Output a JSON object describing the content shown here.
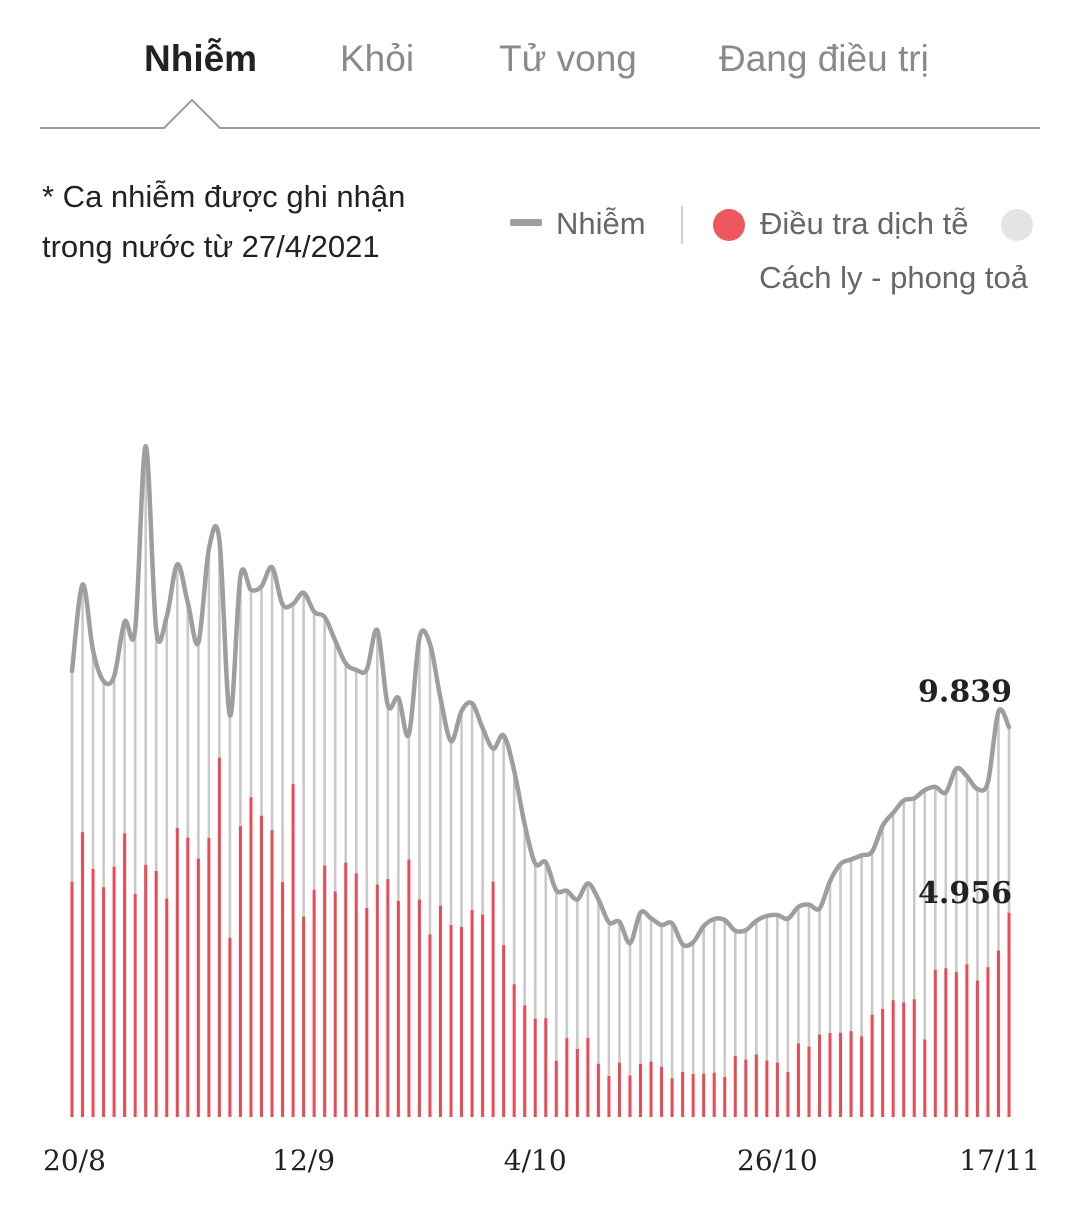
{
  "tabs": [
    {
      "label": "Nhiễm",
      "active": true
    },
    {
      "label": "Khỏi",
      "active": false
    },
    {
      "label": "Tử vong",
      "active": false
    },
    {
      "label": "Đang điều trị",
      "active": false
    }
  ],
  "note": {
    "line1": "* Ca nhiễm được ghi nhận",
    "line2": "trong nước từ 27/4/2021"
  },
  "legend": {
    "infected": "Nhiễm",
    "investigation": "Điều tra dịch tễ",
    "quarantine": "Cách ly - phong toả"
  },
  "colors": {
    "line": "#9e9e9e",
    "total_bar": "#c9c9c9",
    "investigation_bar": "#ea4b55",
    "quarantine_dot": "#e4e4e4"
  },
  "chart_data": {
    "type": "bar",
    "x_start": "20/8",
    "x_end": "17/11",
    "xticks": [
      "20/8",
      "12/9",
      "4/10",
      "26/10",
      "17/11"
    ],
    "series": [
      {
        "name": "Nhiễm",
        "type": "line",
        "values": [
          10824,
          12920,
          11320,
          10577,
          10696,
          12018,
          11826,
          16280,
          11815,
          12146,
          13410,
          12479,
          11509,
          13780,
          14000,
          9743,
          13120,
          12790,
          12876,
          13340,
          12440,
          12450,
          12720,
          12260,
          12130,
          11560,
          11006,
          10850,
          10859,
          11810,
          9988,
          10170,
          9283,
          11630,
          11480,
          10166,
          9120,
          9850,
          10038,
          9440,
          8940,
          9260,
          8400,
          7100,
          6150,
          6180,
          5500,
          5489,
          5280,
          5668,
          5280,
          4723,
          4735,
          4220,
          4960,
          4820,
          4660,
          4700,
          4190,
          4240,
          4630,
          4805,
          4780,
          4520,
          4535,
          4760,
          4880,
          4900,
          4812,
          5098,
          5153,
          5060,
          5720,
          6139,
          6250,
          6349,
          6440,
          7070,
          7380,
          7680,
          7735,
          7935,
          8010,
          7877,
          8455,
          8270,
          7960,
          8130,
          9839,
          9460
        ]
      },
      {
        "name": "Điều tra dịch tễ",
        "type": "bar",
        "values": [
          5710,
          6910,
          6020,
          5575,
          6070,
          6880,
          5410,
          6120,
          5968,
          5300,
          7009,
          6780,
          6271,
          6770,
          8720,
          4348,
          7056,
          7760,
          7310,
          6960,
          5700,
          8076,
          4863,
          5512,
          6100,
          5470,
          6172,
          5910,
          5070,
          5640,
          5774,
          5240,
          6244,
          5276,
          4430,
          5126,
          4658,
          4610,
          5020,
          4913,
          5710,
          4170,
          3220,
          2705,
          2388,
          2398,
          1360,
          1910,
          1652,
          1920,
          1290,
          994,
          1318,
          1007,
          1290,
          1344,
          1218,
          940,
          1092,
          1042,
          1049,
          1074,
          970,
          1480,
          1390,
          1517,
          1370,
          1320,
          1090,
          1784,
          1710,
          2000,
          2038,
          2044,
          2081,
          1956,
          2482,
          2622,
          2833,
          2780,
          2856,
          1880,
          3570,
          3607,
          3515,
          3704,
          3310,
          3634,
          4040,
          4956
        ]
      }
    ],
    "annotations": [
      {
        "text": "9.839",
        "series": "Nhiễm",
        "index": 88
      },
      {
        "text": "4.956",
        "series": "Điều tra dịch tễ",
        "index": 89
      }
    ],
    "ylim": [
      0,
      16500
    ]
  }
}
